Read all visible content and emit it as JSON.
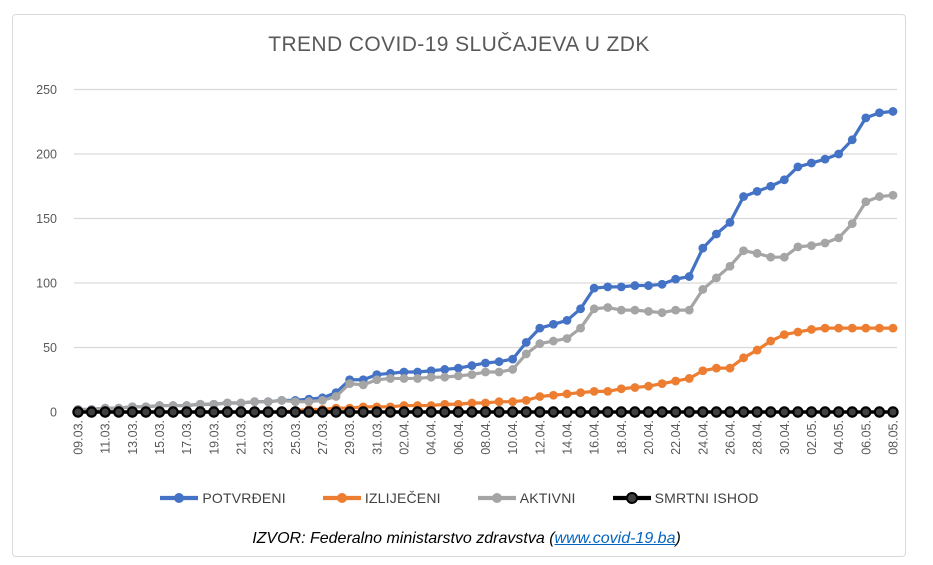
{
  "source": {
    "prefix": "IZVOR: Federalno ministarstvo zdravstva (",
    "link_text": "www.covid-19.ba",
    "suffix": ")"
  },
  "colors": {
    "grid": "#D9D9D9",
    "axis_text": "#595959",
    "title_text": "#595959",
    "link": "#0563C1",
    "frame_border": "#D9D9D9",
    "potvrdeni": "#4472C4",
    "izlijeceni": "#ED7D31",
    "aktivni": "#A5A5A5",
    "smrtni": "#000000"
  },
  "chart_data": {
    "type": "line",
    "title": "TREND COVID-19 SLUČAJEVA U ZDK",
    "xlabel": "",
    "ylabel": "",
    "ylim": [
      0,
      250
    ],
    "yticks": [
      0,
      50,
      100,
      150,
      200,
      250
    ],
    "grid": true,
    "legend_position": "bottom",
    "x_tick_every": 2,
    "x": [
      "09.03.",
      "10.03.",
      "11.03.",
      "12.03.",
      "13.03.",
      "14.03.",
      "15.03.",
      "16.03.",
      "17.03.",
      "18.03.",
      "19.03.",
      "20.03.",
      "21.03.",
      "22.03.",
      "23.03.",
      "24.03.",
      "25.03.",
      "26.03.",
      "27.03.",
      "28.03.",
      "29.03.",
      "30.03.",
      "31.03.",
      "01.04.",
      "02.04.",
      "03.04.",
      "04.04.",
      "05.04.",
      "06.04.",
      "07.04.",
      "08.04.",
      "09.04.",
      "10.04.",
      "11.04.",
      "12.04.",
      "13.04.",
      "14.04.",
      "15.04.",
      "16.04.",
      "17.04.",
      "18.04.",
      "19.04.",
      "20.04.",
      "21.04.",
      "22.04.",
      "23.04.",
      "24.04.",
      "25.04.",
      "26.04.",
      "27.04.",
      "28.04.",
      "29.04.",
      "30.04.",
      "01.05.",
      "02.05.",
      "03.05.",
      "04.05.",
      "05.05.",
      "06.05.",
      "07.05.",
      "08.05."
    ],
    "series": [
      {
        "name": "POTVRĐENI",
        "color": "#4472C4",
        "values": [
          2,
          2,
          3,
          3,
          4,
          4,
          5,
          5,
          5,
          6,
          6,
          7,
          7,
          8,
          8,
          9,
          9,
          10,
          11,
          15,
          25,
          25,
          29,
          30,
          31,
          31,
          32,
          33,
          34,
          36,
          38,
          39,
          41,
          54,
          65,
          68,
          71,
          80,
          96,
          97,
          97,
          98,
          98,
          99,
          103,
          105,
          127,
          138,
          147,
          167,
          171,
          175,
          180,
          190,
          193,
          196,
          200,
          211,
          228,
          232,
          233
        ]
      },
      {
        "name": "IZLIJEČENI",
        "color": "#ED7D31",
        "values": [
          0,
          0,
          0,
          0,
          0,
          0,
          0,
          0,
          0,
          0,
          0,
          0,
          0,
          0,
          0,
          0,
          1,
          2,
          2,
          3,
          3,
          4,
          4,
          4,
          5,
          5,
          5,
          6,
          6,
          7,
          7,
          8,
          8,
          9,
          12,
          13,
          14,
          15,
          16,
          16,
          18,
          19,
          20,
          22,
          24,
          26,
          32,
          34,
          34,
          42,
          48,
          55,
          60,
          62,
          64,
          65,
          65,
          65,
          65,
          65,
          65
        ]
      },
      {
        "name": "AKTIVNI",
        "color": "#A5A5A5",
        "values": [
          2,
          2,
          3,
          3,
          4,
          4,
          5,
          5,
          5,
          6,
          6,
          7,
          7,
          8,
          8,
          9,
          8,
          8,
          9,
          12,
          22,
          21,
          25,
          26,
          26,
          26,
          27,
          27,
          28,
          29,
          31,
          31,
          33,
          45,
          53,
          55,
          57,
          65,
          80,
          81,
          79,
          79,
          78,
          77,
          79,
          79,
          95,
          104,
          113,
          125,
          123,
          120,
          120,
          128,
          129,
          131,
          135,
          146,
          163,
          167,
          168
        ]
      },
      {
        "name": "SMRTNI ISHOD",
        "color": "#000000",
        "marker_fill": "#404040",
        "values": [
          0,
          0,
          0,
          0,
          0,
          0,
          0,
          0,
          0,
          0,
          0,
          0,
          0,
          0,
          0,
          0,
          0,
          0,
          0,
          0,
          0,
          0,
          0,
          0,
          0,
          0,
          0,
          0,
          0,
          0,
          0,
          0,
          0,
          0,
          0,
          0,
          0,
          0,
          0,
          0,
          0,
          0,
          0,
          0,
          0,
          0,
          0,
          0,
          0,
          0,
          0,
          0,
          0,
          0,
          0,
          0,
          0,
          0,
          0,
          0,
          0
        ]
      }
    ]
  }
}
